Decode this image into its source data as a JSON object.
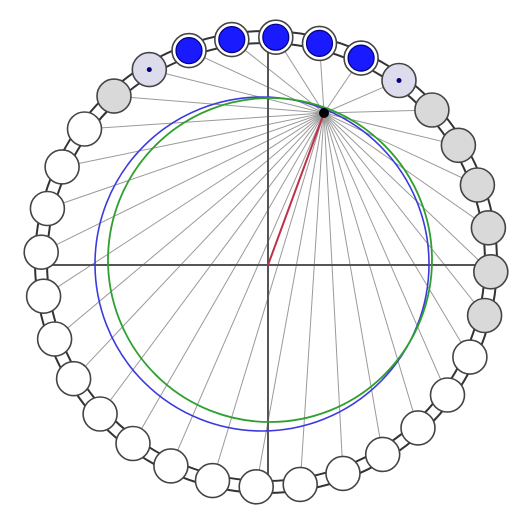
{
  "colors": {
    "background": "#ffffff",
    "outline": "#333333",
    "axis": "#555555",
    "ray": "#9a9a9a",
    "blue_circle": "#3a3adf",
    "green_circle": "#2fa02f",
    "highlight_segment": "#c0304a",
    "pivot": "#000000",
    "bead_solid": "#1a1aff",
    "bead_solid_edge": "#000080",
    "bead_white": "#ffffff",
    "bead_pale": "#dcdcec",
    "bead_gray": "#d9d9d9",
    "bead_edge": "#444444"
  },
  "beads": [
    {
      "state": "solid"
    },
    {
      "state": "solid"
    },
    {
      "state": "solid"
    },
    {
      "state": "solid"
    },
    {
      "state": "solid"
    },
    {
      "state": "pale-dot"
    },
    {
      "state": "gray"
    },
    {
      "state": "gray"
    },
    {
      "state": "gray"
    },
    {
      "state": "gray"
    },
    {
      "state": "gray"
    },
    {
      "state": "gray"
    },
    {
      "state": "white"
    },
    {
      "state": "white"
    },
    {
      "state": "white"
    },
    {
      "state": "white"
    },
    {
      "state": "white"
    },
    {
      "state": "white"
    },
    {
      "state": "white"
    },
    {
      "state": "white"
    },
    {
      "state": "white"
    },
    {
      "state": "white"
    },
    {
      "state": "white"
    },
    {
      "state": "white"
    },
    {
      "state": "white"
    },
    {
      "state": "white"
    },
    {
      "state": "white"
    },
    {
      "state": "white"
    },
    {
      "state": "white"
    },
    {
      "state": "white"
    },
    {
      "state": "gray"
    },
    {
      "state": "pale-dot"
    }
  ]
}
